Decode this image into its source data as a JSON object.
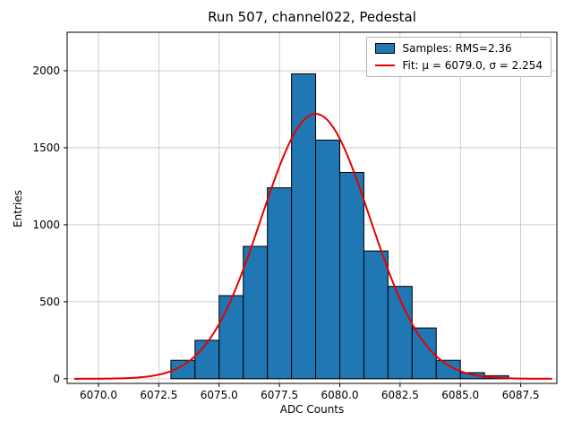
{
  "chart_data": {
    "type": "histogram",
    "title": "Run 507, channel022, Pedestal",
    "xlabel": "ADC Counts",
    "ylabel": "Entries",
    "bin_edges": [
      6073,
      6074,
      6075,
      6076,
      6077,
      6078,
      6079,
      6080,
      6081,
      6082,
      6083,
      6084,
      6085,
      6086,
      6087
    ],
    "counts": [
      120,
      250,
      540,
      860,
      1240,
      1980,
      1550,
      1340,
      830,
      600,
      330,
      120,
      40,
      20
    ],
    "xlim": [
      6068.7,
      6089.0
    ],
    "ylim": [
      -30,
      2250
    ],
    "xtick_values": [
      6070.0,
      6072.5,
      6075.0,
      6077.5,
      6080.0,
      6082.5,
      6085.0,
      6087.5
    ],
    "xtick_labels": [
      "6070.0",
      "6072.5",
      "6075.0",
      "6077.5",
      "6080.0",
      "6082.5",
      "6085.0",
      "6087.5"
    ],
    "ytick_values": [
      0,
      500,
      1000,
      1500,
      2000
    ],
    "ytick_labels": [
      "0",
      "500",
      "1000",
      "1500",
      "2000"
    ],
    "grid": true,
    "legend_position": "upper right",
    "fit": {
      "type": "gaussian",
      "mu": 6079.0,
      "sigma": 2.254,
      "amplitude": 1720,
      "x_min": 6069.0,
      "x_max": 6088.8
    },
    "colors": {
      "bar": "#1f77b4",
      "bar_edge": "#000000",
      "fit_line": "#e60000",
      "grid": "#c0c0c0",
      "axis": "#000000"
    }
  },
  "legend": {
    "samples_label": "Samples: RMS=2.36",
    "fit_label": "Fit: μ = 6079.0, σ = 2.254"
  }
}
